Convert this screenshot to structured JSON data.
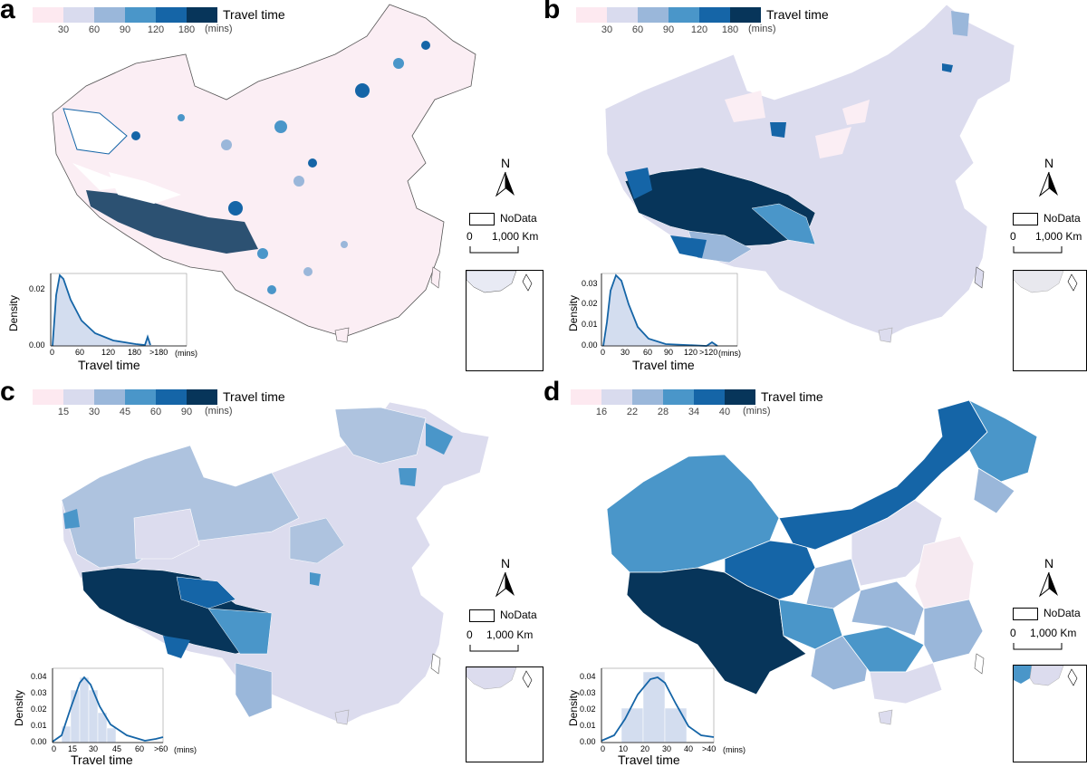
{
  "panels": [
    {
      "letter": "a",
      "legend_title": "Travel time",
      "legend_ticks": [
        "30",
        "60",
        "90",
        "120",
        "180"
      ],
      "legend_units": "(mins)",
      "legend_colors": [
        "#fde9f0",
        "#d9dbee",
        "#9ab7da",
        "#4a96c9",
        "#1565a7",
        "#07355a"
      ],
      "north": "N",
      "nodata": "NoData",
      "scale_zero": "0",
      "scale_label": "1,000 Km",
      "density_ylabel": "Density",
      "density_xlabel": "Travel time",
      "density_units": "(mins)",
      "density_yticks": [
        "0.00",
        "0.02"
      ],
      "density_xticks": [
        "0",
        "60",
        "120",
        "180",
        ">180"
      ]
    },
    {
      "letter": "b",
      "legend_title": "Travel time",
      "legend_ticks": [
        "30",
        "60",
        "90",
        "120",
        "180"
      ],
      "legend_units": "(mins)",
      "legend_colors": [
        "#fde9f0",
        "#d9dbee",
        "#9ab7da",
        "#4a96c9",
        "#1565a7",
        "#07355a"
      ],
      "north": "N",
      "nodata": "NoData",
      "scale_zero": "0",
      "scale_label": "1,000 Km",
      "density_ylabel": "Density",
      "density_xlabel": "Travel time",
      "density_units": "(mins)",
      "density_yticks": [
        "0.00",
        "0.01",
        "0.02",
        "0.03"
      ],
      "density_xticks": [
        "0",
        "30",
        "60",
        "90",
        "120",
        ">120"
      ]
    },
    {
      "letter": "c",
      "legend_title": "Travel time",
      "legend_ticks": [
        "15",
        "30",
        "45",
        "60",
        "90"
      ],
      "legend_units": "(mins)",
      "legend_colors": [
        "#fde9f0",
        "#d9dbee",
        "#9ab7da",
        "#4a96c9",
        "#1565a7",
        "#07355a"
      ],
      "north": "N",
      "nodata": "NoData",
      "scale_zero": "0",
      "scale_label": "1,000 Km",
      "density_ylabel": "Density",
      "density_xlabel": "Travel time",
      "density_units": "(mins)",
      "density_yticks": [
        "0.00",
        "0.01",
        "0.02",
        "0.03",
        "0.04"
      ],
      "density_xticks": [
        "0",
        "15",
        "30",
        "45",
        "60",
        ">60"
      ]
    },
    {
      "letter": "d",
      "legend_title": "Travel time",
      "legend_ticks": [
        "16",
        "22",
        "28",
        "34",
        "40"
      ],
      "legend_units": "(mins)",
      "legend_colors": [
        "#fde9f0",
        "#d9dbee",
        "#9ab7da",
        "#4a96c9",
        "#1565a7",
        "#07355a"
      ],
      "north": "N",
      "nodata": "NoData",
      "scale_zero": "0",
      "scale_label": "1,000 Km",
      "density_ylabel": "Density",
      "density_xlabel": "Travel time",
      "density_units": "(mins)",
      "density_yticks": [
        "0.00",
        "0.01",
        "0.02",
        "0.03",
        "0.04"
      ],
      "density_xticks": [
        "0",
        "10",
        "20",
        "30",
        "40",
        ">40"
      ]
    }
  ]
}
